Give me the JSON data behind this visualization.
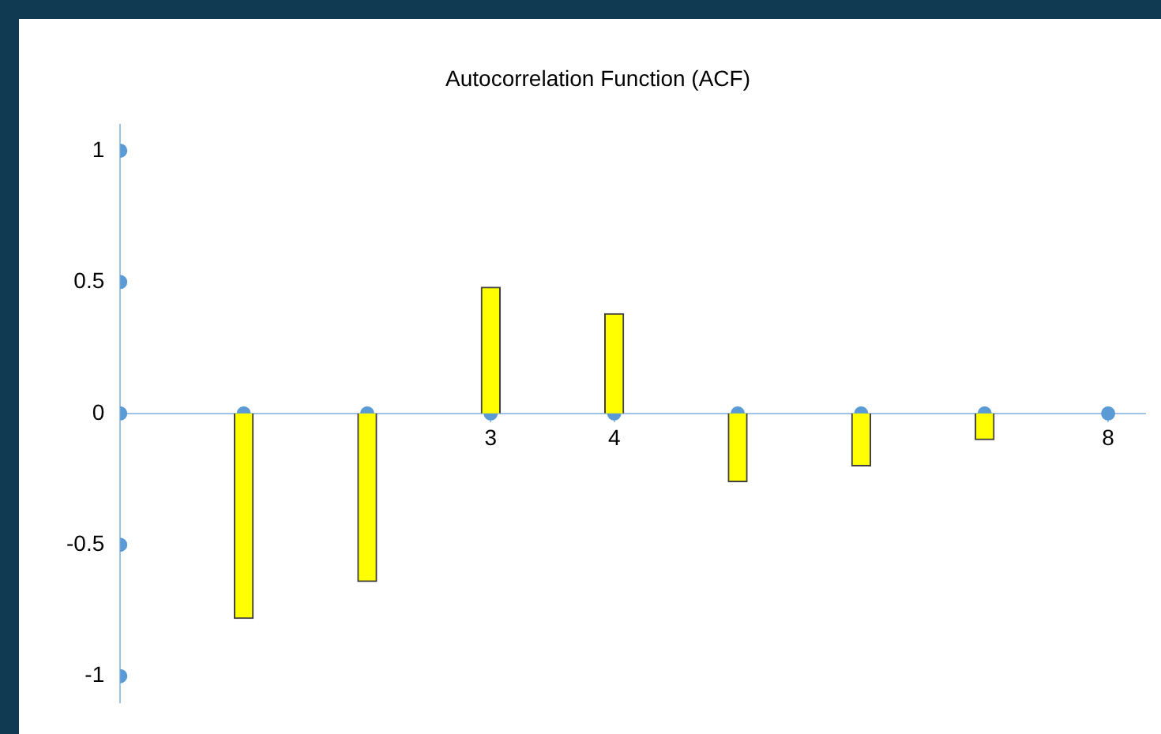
{
  "chart_data": {
    "type": "bar",
    "title": "Autocorrelation Function (ACF)",
    "x": [
      1,
      2,
      3,
      4,
      5,
      6,
      7
    ],
    "series": [
      {
        "color": "#ffff00",
        "values": [
          -0.78,
          -0.64,
          0.48,
          0.38,
          -0.26,
          -0.2,
          -0.1
        ]
      },
      {
        "type": "scatter",
        "color": "#5b9bd5",
        "x": [
          0,
          1,
          2,
          3,
          4,
          5,
          6,
          7,
          8,
          0,
          0,
          0,
          0
        ],
        "values": [
          0,
          0,
          0,
          0,
          0,
          0,
          0,
          0,
          0,
          1,
          0.5,
          -0.5,
          -1
        ]
      }
    ],
    "xlim": [
      0,
      8.3
    ],
    "xticks": [
      {
        "value": 1,
        "label": null
      },
      {
        "value": 2,
        "label": null
      },
      3,
      4,
      {
        "value": 5,
        "label": null
      },
      {
        "value": 6,
        "label": null
      },
      {
        "value": 7,
        "label": null
      },
      8
    ],
    "ylim": [
      -1.1,
      1.1
    ],
    "yticks": [
      -1,
      -0.5,
      0,
      0.5,
      1
    ],
    "grid": false,
    "legend": false,
    "marker": "circle"
  }
}
